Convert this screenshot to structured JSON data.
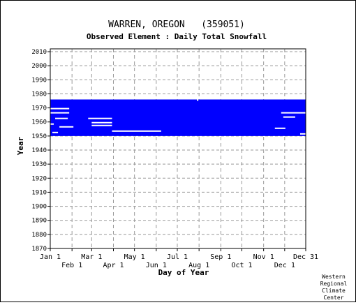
{
  "chart_data": {
    "type": "heatmap",
    "title": "WARREN, OREGON   (359051)",
    "subtitle": "Observed Element : Daily Total Snowfall",
    "xlabel": "Day of Year",
    "ylabel": "Year",
    "credit": [
      "Western",
      "Regional",
      "Climate",
      "Center"
    ],
    "x_ticks_top": [
      "Jan 1",
      "Mar 1",
      "May 1",
      "Jul 1",
      "Sep 1",
      "Nov 1",
      "Dec 31"
    ],
    "x_ticks_bottom": [
      "Feb 1",
      "Apr 1",
      "Jun 1",
      "Aug 1",
      "Oct 1",
      "Dec 1"
    ],
    "x_tick_days_top": [
      1,
      60,
      121,
      182,
      244,
      305,
      365
    ],
    "x_tick_days_bottom": [
      32,
      91,
      152,
      213,
      274,
      335
    ],
    "y_ticks": [
      1870,
      1880,
      1890,
      1900,
      1910,
      1920,
      1930,
      1940,
      1950,
      1960,
      1970,
      1980,
      1990,
      2000,
      2010
    ],
    "xlim": [
      1,
      365
    ],
    "ylim": [
      1870,
      2012
    ],
    "grid": true,
    "record_color": "#0000ff",
    "record_blocks": [
      {
        "day_start": 1,
        "day_end": 365,
        "year_start": 1950,
        "year_end": 1975
      }
    ],
    "missing_segments": [
      {
        "day_start": 1,
        "day_end": 28,
        "year": 1969
      },
      {
        "day_start": 1,
        "day_end": 28,
        "year": 1966
      },
      {
        "day_start": 8,
        "day_end": 26,
        "year": 1962
      },
      {
        "day_start": 1,
        "day_end": 6,
        "year": 1958
      },
      {
        "day_start": 14,
        "day_end": 34,
        "year": 1956
      },
      {
        "day_start": 4,
        "day_end": 12,
        "year": 1952
      },
      {
        "day_start": 55,
        "day_end": 89,
        "year": 1962
      },
      {
        "day_start": 60,
        "day_end": 89,
        "year": 1959
      },
      {
        "day_start": 60,
        "day_end": 89,
        "year": 1957
      },
      {
        "day_start": 89,
        "day_end": 159,
        "year": 1953
      },
      {
        "day_start": 330,
        "day_end": 365,
        "year": 1966
      },
      {
        "day_start": 333,
        "day_end": 350,
        "year": 1963
      },
      {
        "day_start": 321,
        "day_end": 336,
        "year": 1955
      },
      {
        "day_start": 357,
        "day_end": 365,
        "year": 1951
      },
      {
        "day_start": 210,
        "day_end": 212,
        "year": 1975
      }
    ]
  }
}
